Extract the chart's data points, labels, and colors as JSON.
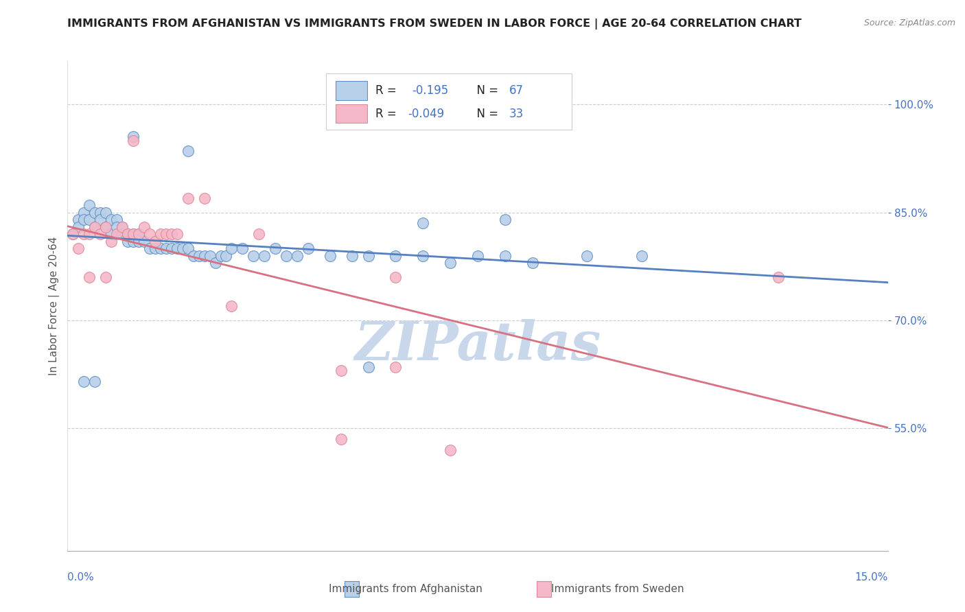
{
  "title": "IMMIGRANTS FROM AFGHANISTAN VS IMMIGRANTS FROM SWEDEN IN LABOR FORCE | AGE 20-64 CORRELATION CHART",
  "source": "Source: ZipAtlas.com",
  "ylabel": "In Labor Force | Age 20-64",
  "right_yticks": [
    0.55,
    0.7,
    0.85,
    1.0
  ],
  "right_yticklabels": [
    "55.0%",
    "70.0%",
    "85.0%",
    "100.0%"
  ],
  "xlim": [
    0.0,
    0.15
  ],
  "ylim": [
    0.38,
    1.06
  ],
  "watermark": "ZIPatlas",
  "legend_r1": "R =  -0.195",
  "legend_n1": "N = 67",
  "legend_r2": "R = -0.049",
  "legend_n2": "N = 33",
  "afghanistan_fill": "#b8d0e8",
  "sweden_fill": "#f4b8c8",
  "afghanistan_edge": "#6090c8",
  "sweden_edge": "#e08898",
  "afghanistan_line": "#5580c0",
  "sweden_line": "#d87080",
  "axis_color": "#4472c4",
  "watermark_color": "#c8d8ea",
  "grid_color": "#cccccc",
  "title_color": "#222222",
  "source_color": "#888888",
  "ylabel_color": "#555555",
  "legend_text_color": "#222222",
  "legend_r_color": "#4472c4",
  "legend_border": "#cccccc",
  "bottom_legend_color": "#555555",
  "afg_x": [
    0.001,
    0.002,
    0.002,
    0.003,
    0.003,
    0.004,
    0.004,
    0.005,
    0.005,
    0.006,
    0.006,
    0.007,
    0.007,
    0.008,
    0.008,
    0.009,
    0.009,
    0.01,
    0.01,
    0.011,
    0.011,
    0.012,
    0.012,
    0.013,
    0.013,
    0.014,
    0.015,
    0.016,
    0.017,
    0.018,
    0.019,
    0.02,
    0.021,
    0.022,
    0.023,
    0.024,
    0.025,
    0.026,
    0.027,
    0.028,
    0.029,
    0.03,
    0.032,
    0.034,
    0.036,
    0.038,
    0.04,
    0.042,
    0.044,
    0.048,
    0.052,
    0.055,
    0.06,
    0.065,
    0.07,
    0.075,
    0.08,
    0.085,
    0.095,
    0.105,
    0.022,
    0.055,
    0.012,
    0.005,
    0.003,
    0.065,
    0.08
  ],
  "afg_y": [
    0.82,
    0.84,
    0.83,
    0.85,
    0.84,
    0.86,
    0.84,
    0.85,
    0.83,
    0.85,
    0.84,
    0.83,
    0.85,
    0.84,
    0.82,
    0.84,
    0.83,
    0.83,
    0.82,
    0.82,
    0.81,
    0.82,
    0.81,
    0.82,
    0.81,
    0.81,
    0.8,
    0.8,
    0.8,
    0.8,
    0.8,
    0.8,
    0.8,
    0.8,
    0.79,
    0.79,
    0.79,
    0.79,
    0.78,
    0.79,
    0.79,
    0.8,
    0.8,
    0.79,
    0.79,
    0.8,
    0.79,
    0.79,
    0.8,
    0.79,
    0.79,
    0.79,
    0.79,
    0.79,
    0.78,
    0.79,
    0.79,
    0.78,
    0.79,
    0.79,
    0.935,
    0.635,
    0.955,
    0.615,
    0.615,
    0.835,
    0.84
  ],
  "swe_x": [
    0.001,
    0.002,
    0.003,
    0.004,
    0.005,
    0.006,
    0.007,
    0.008,
    0.009,
    0.01,
    0.011,
    0.012,
    0.013,
    0.014,
    0.015,
    0.016,
    0.017,
    0.018,
    0.019,
    0.02,
    0.022,
    0.025,
    0.03,
    0.035,
    0.05,
    0.06,
    0.07,
    0.13,
    0.004,
    0.007,
    0.012,
    0.05,
    0.06
  ],
  "swe_y": [
    0.82,
    0.8,
    0.82,
    0.82,
    0.83,
    0.82,
    0.83,
    0.81,
    0.82,
    0.83,
    0.82,
    0.82,
    0.82,
    0.83,
    0.82,
    0.81,
    0.82,
    0.82,
    0.82,
    0.82,
    0.87,
    0.87,
    0.72,
    0.82,
    0.63,
    0.76,
    0.52,
    0.76,
    0.76,
    0.76,
    0.95,
    0.535,
    0.635
  ]
}
